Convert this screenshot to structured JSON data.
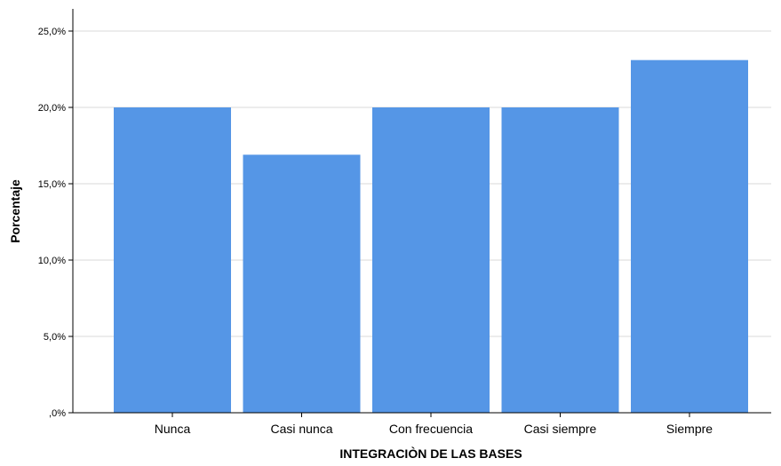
{
  "chart_data": {
    "type": "bar",
    "categories": [
      "Nunca",
      "Casi nunca",
      "Con frecuencia",
      "Casi siempre",
      "Siempre"
    ],
    "values": [
      20.0,
      16.9,
      20.0,
      20.0,
      23.1
    ],
    "xlabel": "INTEGRACIÒN DE LAS BASES",
    "ylabel": "Porcentaje",
    "ylim": [
      0,
      25
    ],
    "yticks": [
      0,
      5,
      10,
      15,
      20,
      25
    ],
    "ytick_labels": [
      ",0%",
      "5,0%",
      "10,0%",
      "15,0%",
      "20,0%",
      "25,0%"
    ],
    "grid": true,
    "bar_color": "#5596e6",
    "grid_color": "#d9d9d9"
  }
}
